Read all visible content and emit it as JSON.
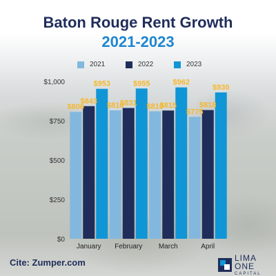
{
  "title": "Baton Rouge Rent Growth",
  "subtitle": "2021-2023",
  "citation": "Cite: Zumper.com",
  "logo": {
    "name": "LIMA ONE",
    "sub": "CAPITAL"
  },
  "colors": {
    "title": "#1f2d5a",
    "subtitle": "#1e86d0",
    "label": "#f5b82e"
  },
  "chart_data": {
    "type": "bar",
    "title": "Baton Rouge Rent Growth",
    "subtitle": "2021-2023",
    "categories": [
      "January",
      "February",
      "March",
      "April"
    ],
    "series": [
      {
        "name": "2021",
        "color": "#82b8dd",
        "values": [
          806,
          816,
          810,
          775
        ],
        "labels": [
          "$806",
          "$816",
          "$810",
          "$775"
        ]
      },
      {
        "name": "2022",
        "color": "#1f2d5a",
        "values": [
          843,
          831,
          815,
          818
        ],
        "labels": [
          "$843",
          "$831",
          "$815",
          "$818"
        ]
      },
      {
        "name": "2023",
        "color": "#1096d6",
        "values": [
          953,
          955,
          962,
          930
        ],
        "labels": [
          "$953",
          "$955",
          "$962",
          "$930"
        ]
      }
    ],
    "yticks": [
      0,
      250,
      500,
      750,
      1000
    ],
    "ytick_labels": [
      "$0",
      "$250",
      "$500",
      "$750",
      "$1,000"
    ],
    "ylim": [
      0,
      1000
    ],
    "legend_position": "top",
    "grid": false
  }
}
